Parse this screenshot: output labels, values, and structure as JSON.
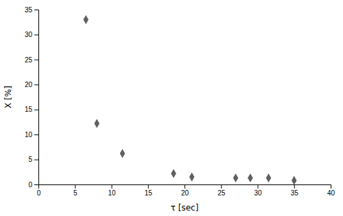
{
  "chart_data": {
    "type": "scatter",
    "x": [
      6.5,
      8.0,
      11.5,
      18.5,
      21.0,
      27.0,
      29.0,
      31.5,
      35.0
    ],
    "values": [
      33.0,
      12.2,
      6.2,
      2.2,
      1.5,
      1.3,
      1.3,
      1.3,
      0.8
    ],
    "color": "#606060",
    "marker": "diamond",
    "xlabel": "τ [sec]",
    "ylabel": "X [%]",
    "xlim": [
      0,
      40
    ],
    "ylim": [
      0,
      35
    ],
    "xticks": [
      0,
      5,
      10,
      15,
      20,
      25,
      30,
      35,
      40
    ],
    "yticks": [
      0,
      5,
      10,
      15,
      20,
      25,
      30,
      35
    ],
    "grid": false
  }
}
